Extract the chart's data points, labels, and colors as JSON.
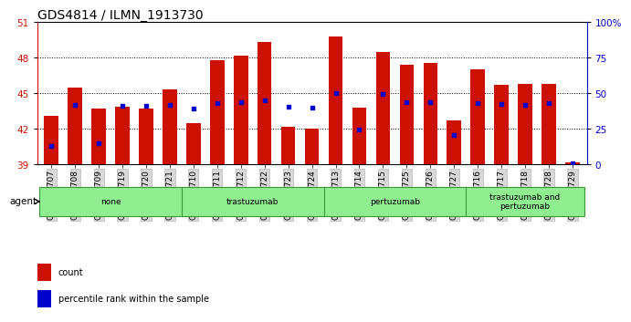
{
  "title": "GDS4814 / ILMN_1913730",
  "samples": [
    "GSM780707",
    "GSM780708",
    "GSM780709",
    "GSM780719",
    "GSM780720",
    "GSM780721",
    "GSM780710",
    "GSM780711",
    "GSM780712",
    "GSM780722",
    "GSM780723",
    "GSM780724",
    "GSM780713",
    "GSM780714",
    "GSM780715",
    "GSM780725",
    "GSM780726",
    "GSM780727",
    "GSM780716",
    "GSM780717",
    "GSM780718",
    "GSM780728",
    "GSM780729"
  ],
  "counts": [
    43.1,
    45.5,
    43.7,
    43.9,
    43.7,
    45.3,
    42.5,
    47.8,
    48.2,
    49.3,
    42.2,
    42.0,
    49.8,
    43.8,
    48.5,
    47.4,
    47.6,
    42.7,
    47.0,
    45.7,
    45.8,
    45.8,
    39.2
  ],
  "percentile_ranks": [
    13,
    42,
    15,
    41,
    41,
    42,
    39.5,
    43,
    43.5,
    44.8,
    40.3,
    40.0,
    50.5,
    24.5,
    49.5,
    43.5,
    43.5,
    20.5,
    43,
    42.5,
    42,
    43,
    0.5
  ],
  "groups": [
    {
      "label": "none",
      "start": 0,
      "end": 6
    },
    {
      "label": "trastuzumab",
      "start": 6,
      "end": 12
    },
    {
      "label": "pertuzumab",
      "start": 12,
      "end": 18
    },
    {
      "label": "trastuzumab and\npertuzumab",
      "start": 18,
      "end": 23
    }
  ],
  "bar_color": "#cc1100",
  "dot_color": "#0000cc",
  "ylim_left": [
    39,
    51
  ],
  "ylim_right": [
    0,
    100
  ],
  "yticks_left": [
    39,
    42,
    45,
    48,
    51
  ],
  "yticks_right": [
    0,
    25,
    50,
    75,
    100
  ],
  "grid_yticks": [
    42,
    45,
    48
  ],
  "background_color": "#ffffff",
  "title_fontsize": 10,
  "tick_label_fontsize": 6.5,
  "axis_color_left": "#cc1100",
  "axis_color_right": "#0000cc",
  "group_fill": "#90ee90",
  "group_edge": "#3a9a3a"
}
